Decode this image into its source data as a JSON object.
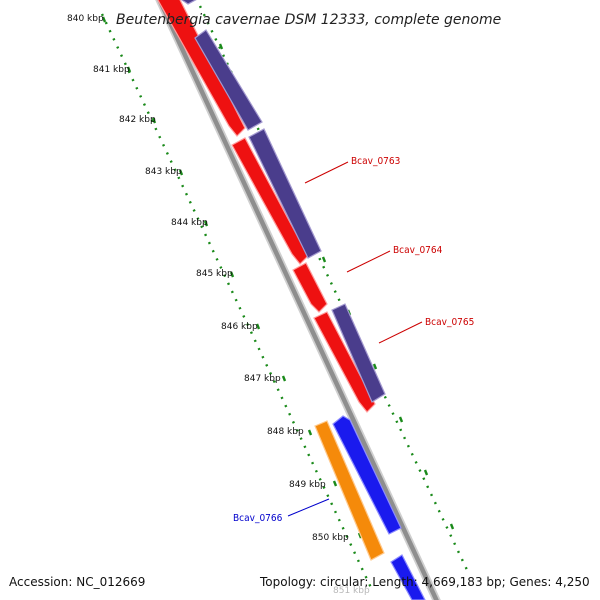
{
  "title": "Beutenbergia cavernae DSM 12333, complete genome",
  "accession": "Accession: NC_012669",
  "topology": "Topology: circular; Length: 4,669,183 bp; Genes: 4,250",
  "ruler": {
    "labels": [
      "840 kbp",
      "841 kbp",
      "842 kbp",
      "843 kbp",
      "844 kbp",
      "845 kbp",
      "846 kbp",
      "847 kbp",
      "848 kbp",
      "849 kbp",
      "850 kbp",
      "851 kbp"
    ],
    "color": "#1a8a1a"
  },
  "colors": {
    "backbone": "#8e8e8e",
    "red_strand": "#ee1111",
    "purple_strand": "#4a3d8c",
    "blue_strand": "#1a1aee",
    "orange_strand": "#f58a0a",
    "label_red": "#cc0000",
    "label_blue": "#0000cc"
  },
  "genes": [
    {
      "label": "Bcav_0763",
      "color": "#cc0000"
    },
    {
      "label": "Bcav_0764",
      "color": "#cc0000"
    },
    {
      "label": "Bcav_0765",
      "color": "#cc0000"
    },
    {
      "label": "Bcav_0766",
      "color": "#0000cc"
    }
  ]
}
